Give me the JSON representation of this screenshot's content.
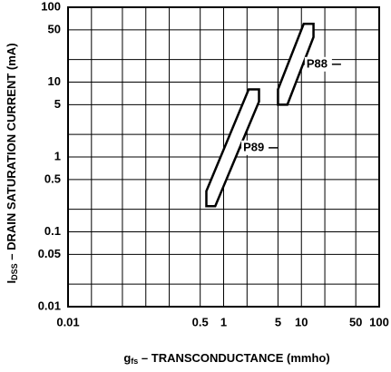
{
  "chart_data": {
    "type": "band",
    "xlabel": {
      "main": "g",
      "sub": "fs",
      "rest": " – TRANSCONDUCTANCE (mmho)"
    },
    "ylabel": {
      "main": "I",
      "sub": "DSS",
      "rest": " – DRAIN SATURATION CURRENT (mA)"
    },
    "xscale": "log",
    "yscale": "log",
    "xlim": [
      0.01,
      100
    ],
    "ylim": [
      0.01,
      100
    ],
    "xticks": [
      0.01,
      0.5,
      1,
      5,
      10,
      50,
      100
    ],
    "yticks": [
      0.01,
      0.05,
      0.1,
      0.5,
      1,
      5,
      10,
      50,
      100
    ],
    "xminor": [
      0.02,
      0.05,
      0.1,
      0.2,
      2,
      20
    ],
    "yminor": [
      0.02,
      0.2,
      2,
      20
    ],
    "grid": true,
    "color": "#000000",
    "series": [
      {
        "name": "P89",
        "x": [
          0.6,
          0.6,
          2.1,
          2.85,
          2.85,
          0.78
        ],
        "values": [
          0.22,
          0.35,
          8,
          8,
          5.5,
          0.22
        ]
      },
      {
        "name": "P88",
        "x": [
          5.0,
          5.0,
          10.7,
          14.3,
          14.3,
          6.6
        ],
        "values": [
          5,
          8,
          60,
          60,
          40,
          5
        ]
      }
    ]
  }
}
